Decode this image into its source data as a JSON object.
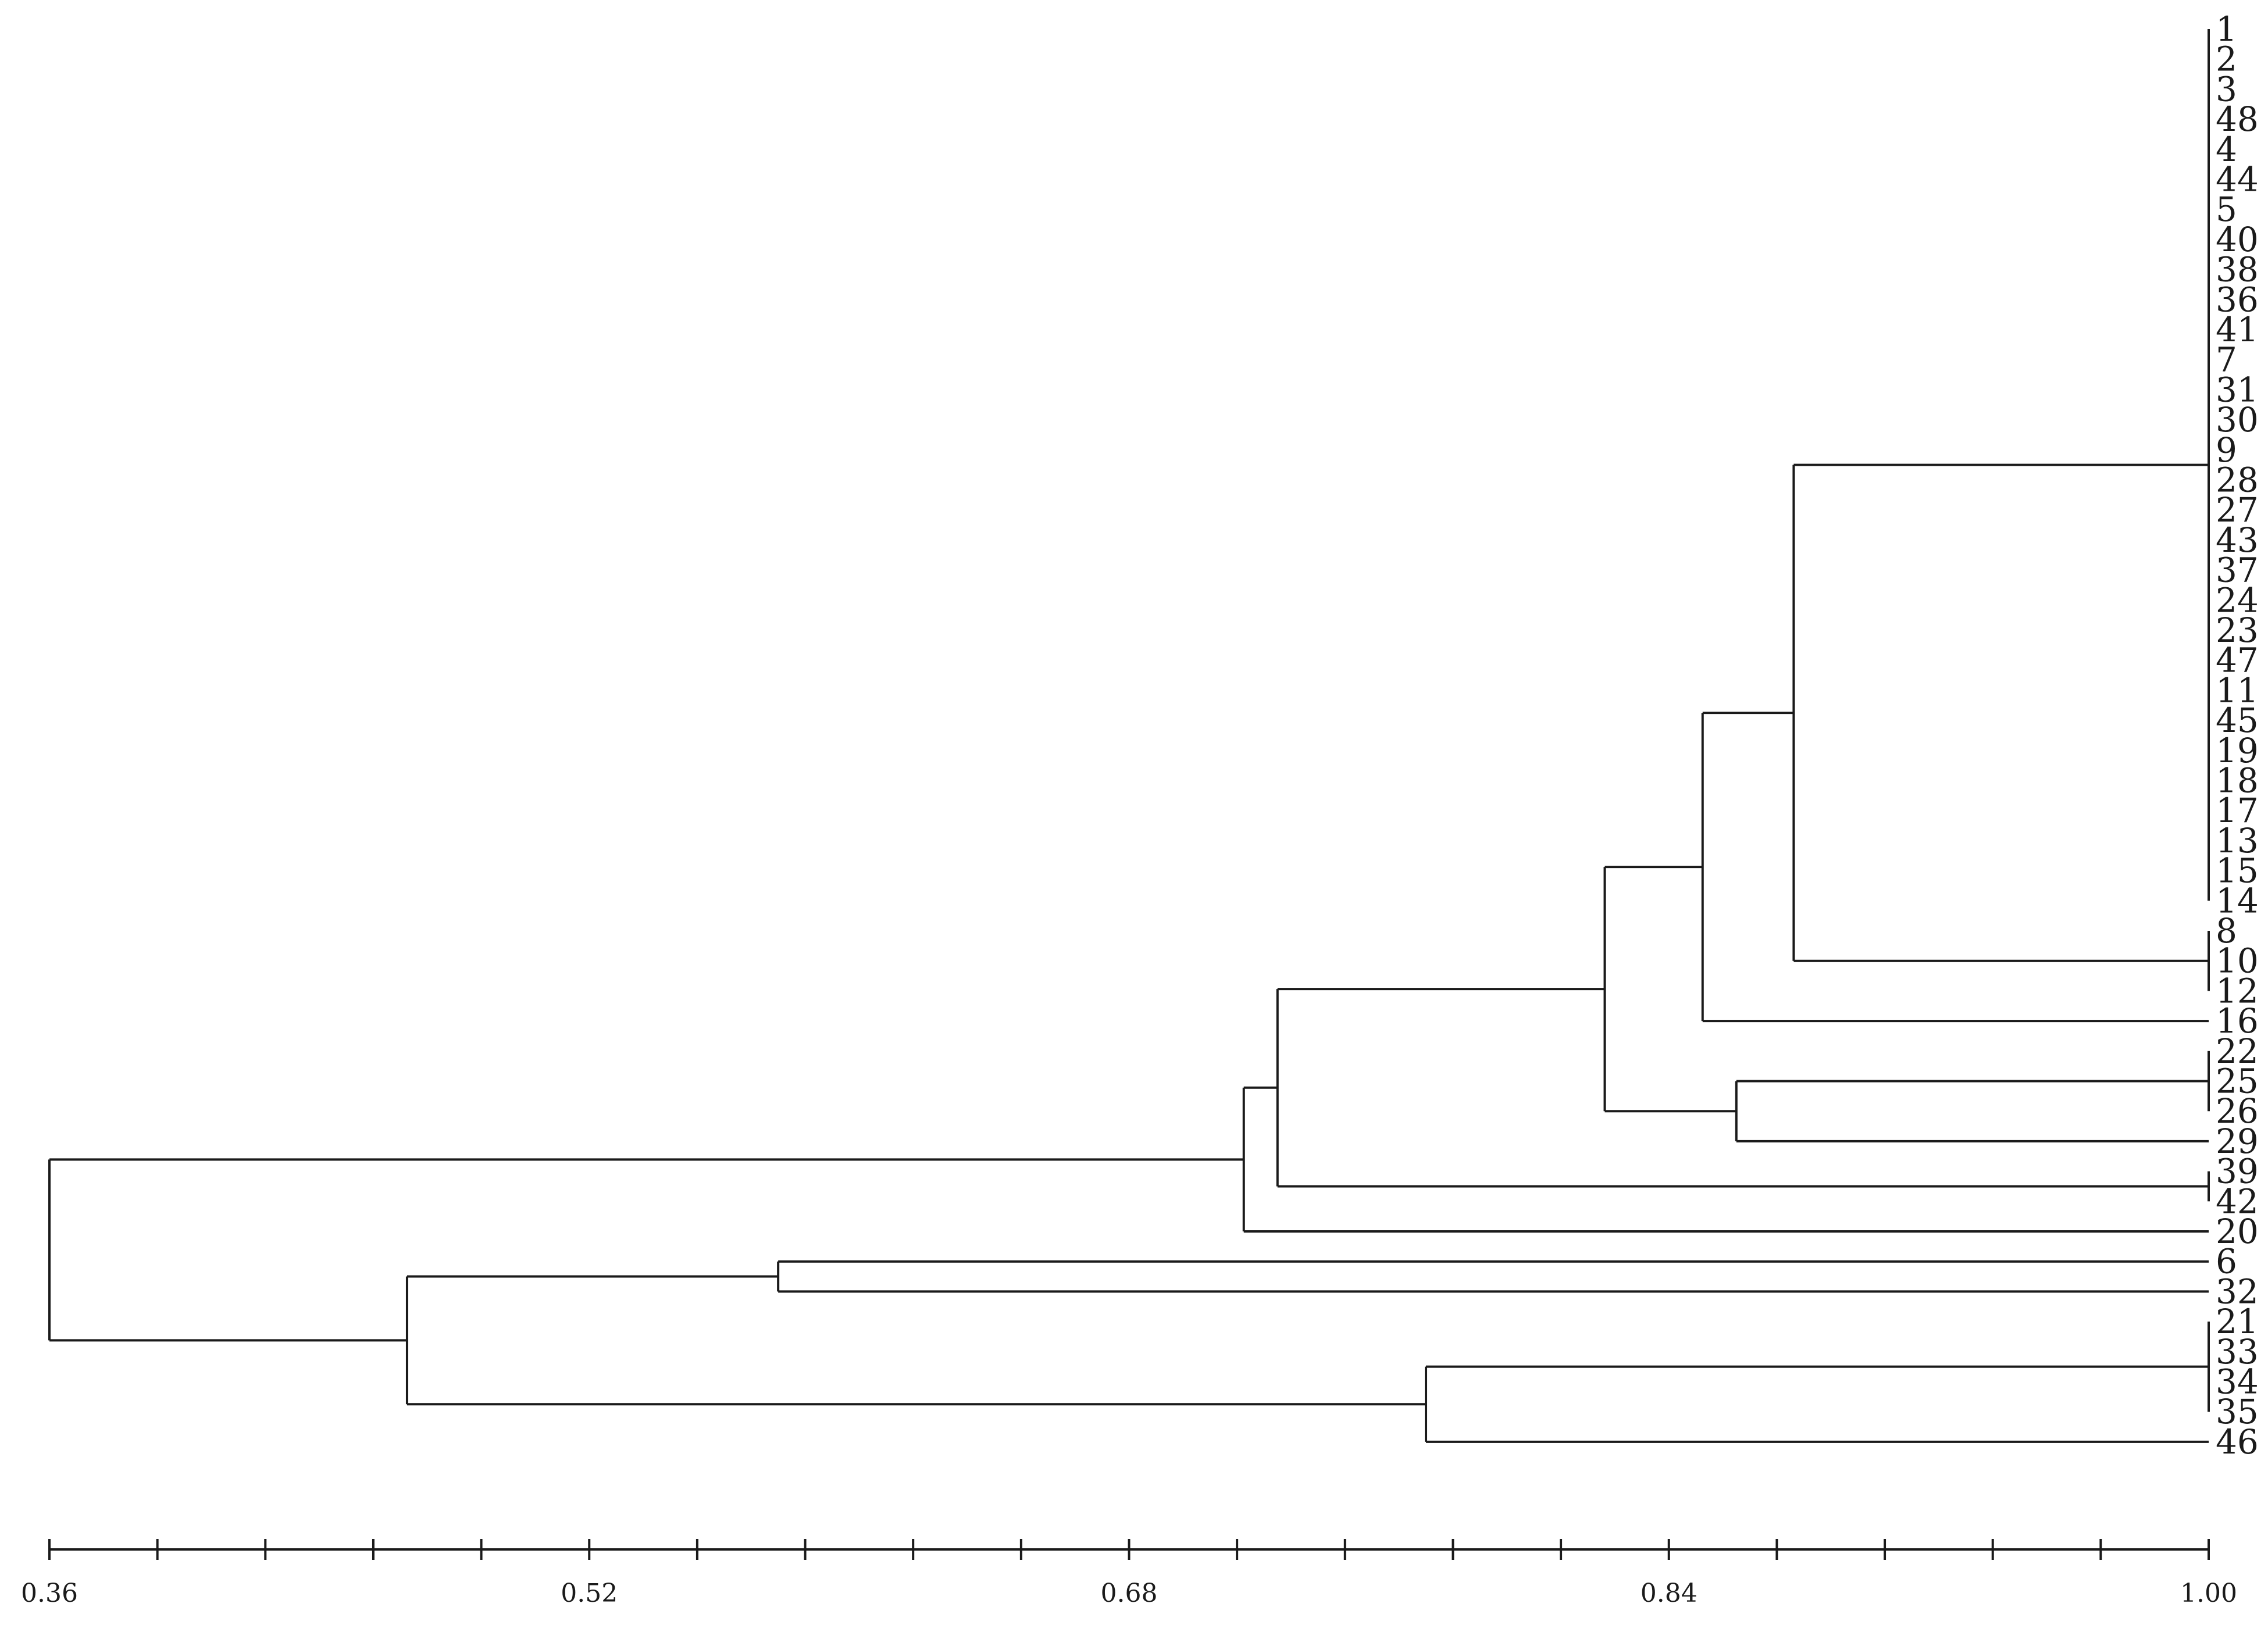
{
  "chart_data": {
    "type": "dendrogram",
    "title": "",
    "xlabel": "",
    "axis": {
      "range": [
        0.36,
        1.0
      ],
      "major_ticks": [
        0.36,
        0.52,
        0.68,
        0.84,
        1.0
      ],
      "tick_labels": [
        "0.36",
        "0.52",
        "0.68",
        "0.84",
        "1.00"
      ],
      "minor_step": 0.032
    },
    "leaves": [
      "1",
      "2",
      "3",
      "48",
      "4",
      "44",
      "5",
      "40",
      "38",
      "36",
      "41",
      "7",
      "31",
      "30",
      "9",
      "28",
      "27",
      "43",
      "37",
      "24",
      "23",
      "47",
      "11",
      "45",
      "19",
      "18",
      "17",
      "13",
      "15",
      "14",
      "8",
      "10",
      "12",
      "16",
      "22",
      "25",
      "26",
      "29",
      "39",
      "42",
      "20",
      "6",
      "32",
      "21",
      "33",
      "34",
      "35",
      "46"
    ],
    "clusters": [
      {
        "id": "A",
        "members": [
          "1",
          "2",
          "3",
          "48",
          "4",
          "44",
          "5",
          "40",
          "38",
          "36",
          "41",
          "7",
          "31",
          "30",
          "9",
          "28",
          "27",
          "43",
          "37",
          "24",
          "23",
          "47",
          "11",
          "45",
          "19",
          "18",
          "17",
          "13",
          "15",
          "14"
        ],
        "similarity": 1.0
      },
      {
        "id": "B",
        "members": [
          "8",
          "10",
          "12"
        ],
        "similarity": 1.0
      },
      {
        "id": "C",
        "members": [
          "22",
          "25",
          "26"
        ],
        "similarity": 1.0
      },
      {
        "id": "D",
        "members": [
          "39",
          "42"
        ],
        "similarity": 1.0
      },
      {
        "id": "E",
        "members": [
          "21",
          "33",
          "34",
          "35"
        ],
        "similarity": 1.0
      },
      {
        "id": "AB",
        "children": [
          "A",
          "B"
        ],
        "similarity": 0.877
      },
      {
        "id": "AB16",
        "children": [
          "AB",
          "16"
        ],
        "similarity": 0.85
      },
      {
        "id": "C29",
        "children": [
          "C",
          "29"
        ],
        "similarity": 0.86
      },
      {
        "id": "N1",
        "children": [
          "AB16",
          "C29"
        ],
        "similarity": 0.821
      },
      {
        "id": "N2",
        "children": [
          "N1",
          "D"
        ],
        "similarity": 0.724
      },
      {
        "id": "N3",
        "children": [
          "N2",
          "20"
        ],
        "similarity": 0.714
      },
      {
        "id": "N6_32",
        "children": [
          "6",
          "32"
        ],
        "similarity": 0.576
      },
      {
        "id": "E46",
        "children": [
          "E",
          "46"
        ],
        "similarity": 0.768
      },
      {
        "id": "N4",
        "children": [
          "N6_32",
          "E46"
        ],
        "similarity": 0.466
      },
      {
        "id": "root",
        "children": [
          "N3",
          "N4"
        ],
        "similarity": 0.36
      }
    ]
  }
}
